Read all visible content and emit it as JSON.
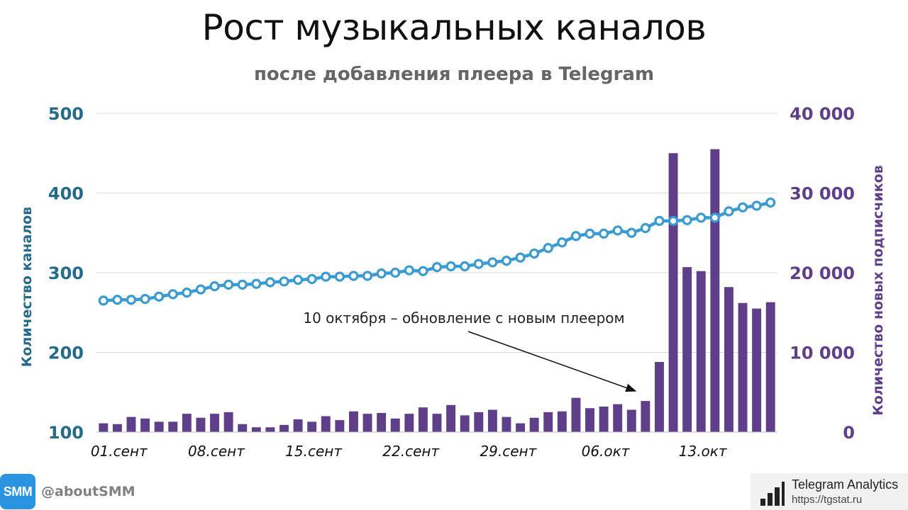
{
  "title": "Рост музыкальных каналов",
  "subtitle": "после добавления плеера в Telegram",
  "chart_data": {
    "type": "bar+line",
    "x": [
      "01.09",
      "02.09",
      "03.09",
      "04.09",
      "05.09",
      "06.09",
      "07.09",
      "08.09",
      "09.09",
      "10.09",
      "11.09",
      "12.09",
      "13.09",
      "14.09",
      "15.09",
      "16.09",
      "17.09",
      "18.09",
      "19.09",
      "20.09",
      "21.09",
      "22.09",
      "23.09",
      "24.09",
      "25.09",
      "26.09",
      "27.09",
      "28.09",
      "29.09",
      "30.09",
      "01.10",
      "02.10",
      "03.10",
      "04.10",
      "05.10",
      "06.10",
      "07.10",
      "08.10",
      "09.10",
      "10.10",
      "11.10",
      "12.10",
      "13.10",
      "14.10",
      "15.10",
      "16.10",
      "17.10",
      "18.10",
      "19.10"
    ],
    "x_tick_labels": [
      {
        "index": 0,
        "label": "01.сент"
      },
      {
        "index": 7,
        "label": "08.сент"
      },
      {
        "index": 14,
        "label": "15.сент"
      },
      {
        "index": 21,
        "label": "22.сент"
      },
      {
        "index": 28,
        "label": "29.сент"
      },
      {
        "index": 35,
        "label": "06.окт"
      },
      {
        "index": 42,
        "label": "13.окт"
      }
    ],
    "series": [
      {
        "name": "Количество каналов",
        "type": "line",
        "axis": "left",
        "color": "#3a9ad2",
        "values": [
          265,
          266,
          266,
          267,
          270,
          273,
          275,
          279,
          283,
          285,
          285,
          286,
          288,
          289,
          291,
          292,
          295,
          295,
          296,
          296,
          299,
          300,
          303,
          302,
          307,
          308,
          308,
          311,
          313,
          315,
          319,
          324,
          331,
          338,
          346,
          349,
          349,
          353,
          350,
          356,
          365,
          365,
          366,
          369,
          369,
          377,
          382,
          384,
          388
        ]
      },
      {
        "name": "Количество новых подписчиков",
        "type": "bar",
        "axis": "right",
        "color": "#5f3f8a",
        "values": [
          1100,
          1000,
          1900,
          1700,
          1300,
          1300,
          2300,
          1800,
          2300,
          2500,
          1000,
          600,
          600,
          900,
          1600,
          1300,
          2000,
          1500,
          2600,
          2300,
          2400,
          1700,
          2300,
          3100,
          2300,
          3400,
          2100,
          2500,
          2800,
          1900,
          1100,
          1800,
          2500,
          2600,
          4300,
          3000,
          3200,
          3500,
          2800,
          3900,
          8800,
          35000,
          20700,
          20200,
          35500,
          18200,
          16200,
          15500,
          16300
        ]
      }
    ],
    "ylabel_left": "Количество каналов",
    "ylabel_right": "Количество новых подписчиков",
    "ylim_left": [
      100,
      500
    ],
    "yticks_left": [
      "100",
      "200",
      "300",
      "400",
      "500"
    ],
    "ylim_right": [
      0,
      40000
    ],
    "yticks_right": [
      "0",
      "10 000",
      "20 000",
      "30 000",
      "40 000"
    ],
    "grid": true,
    "annotation": {
      "text": "10 октября – обновление с новым плеером",
      "points_to_index": 39
    }
  },
  "footer": {
    "logo_text": "SMM",
    "handle": "@aboutSMM",
    "brand_name": "Telegram Analytics",
    "brand_url": "https://tgstat.ru"
  }
}
